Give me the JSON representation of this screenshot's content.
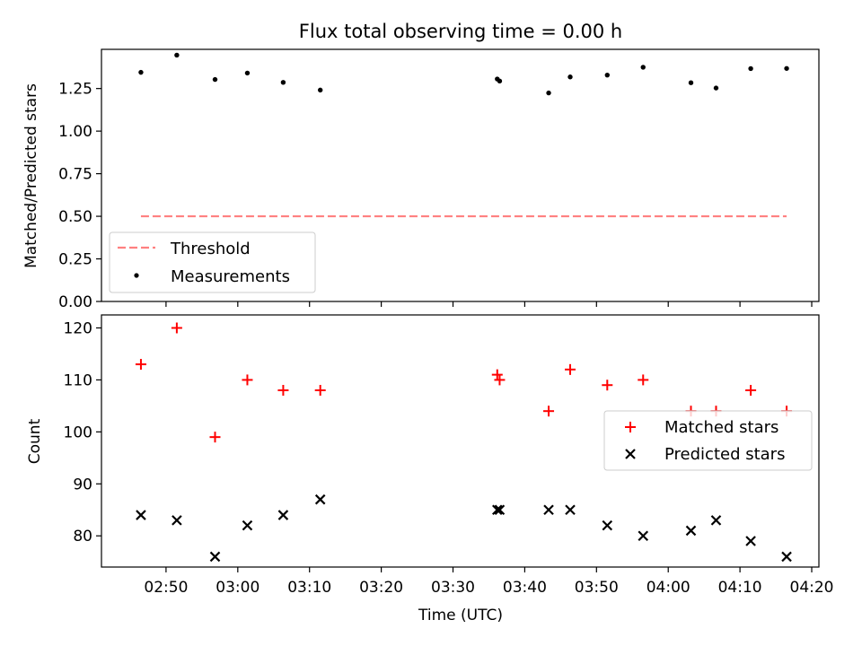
{
  "chart_data": [
    {
      "type": "scatter",
      "title": "Flux total observing time = 0.00 h",
      "xlabel": "",
      "ylabel": "Matched/Predicted stars",
      "xlim": [
        "02:41",
        "04:21"
      ],
      "ylim": [
        0,
        1.48
      ],
      "yticks": [
        0.0,
        0.25,
        0.5,
        0.75,
        1.0,
        1.25
      ],
      "ytick_labels": [
        "0.00",
        "0.25",
        "0.50",
        "0.75",
        "1.00",
        "1.25"
      ],
      "grid": false,
      "legend": "lower-left",
      "series": [
        {
          "name": "Threshold",
          "kind": "dashed-line",
          "color": "#ff8080",
          "x": [
            "02:46:30",
            "04:16:30"
          ],
          "y": [
            0.5,
            0.5
          ]
        },
        {
          "name": "Measurements",
          "kind": "dots",
          "color": "#000000",
          "x": [
            "02:46:30",
            "02:51:30",
            "02:56:50",
            "03:01:20",
            "03:06:20",
            "03:11:30",
            "03:36:10",
            "03:36:30",
            "03:43:20",
            "03:46:20",
            "03:51:30",
            "03:56:30",
            "04:03:10",
            "04:06:40",
            "04:11:30",
            "04:16:30"
          ],
          "y": [
            1.345,
            1.446,
            1.303,
            1.341,
            1.286,
            1.241,
            1.306,
            1.294,
            1.224,
            1.318,
            1.329,
            1.375,
            1.284,
            1.253,
            1.367,
            1.368
          ]
        }
      ]
    },
    {
      "type": "scatter",
      "title": "",
      "xlabel": "Time (UTC)",
      "ylabel": "Count",
      "xlim": [
        "02:41",
        "04:21"
      ],
      "xticks": [
        "02:50",
        "03:00",
        "03:10",
        "03:20",
        "03:30",
        "03:40",
        "03:50",
        "04:00",
        "04:10",
        "04:20"
      ],
      "ylim": [
        74,
        122.5
      ],
      "yticks": [
        80,
        90,
        100,
        110,
        120
      ],
      "grid": false,
      "legend": "right",
      "series": [
        {
          "name": "Matched stars",
          "marker": "plus",
          "color": "#ff0000",
          "x": [
            "02:46:30",
            "02:51:30",
            "02:56:50",
            "03:01:20",
            "03:06:20",
            "03:11:30",
            "03:36:10",
            "03:36:30",
            "03:43:20",
            "03:46:20",
            "03:51:30",
            "03:56:30",
            "04:03:10",
            "04:06:40",
            "04:11:30",
            "04:16:30"
          ],
          "y": [
            113,
            120,
            99,
            110,
            108,
            108,
            111,
            110,
            104,
            112,
            109,
            110,
            104,
            104,
            108,
            104
          ]
        },
        {
          "name": "Predicted stars",
          "marker": "x",
          "color": "#000000",
          "x": [
            "02:46:30",
            "02:51:30",
            "02:56:50",
            "03:01:20",
            "03:06:20",
            "03:11:30",
            "03:36:10",
            "03:36:30",
            "03:43:20",
            "03:46:20",
            "03:51:30",
            "03:56:30",
            "04:03:10",
            "04:06:40",
            "04:11:30",
            "04:16:30"
          ],
          "y": [
            84,
            83,
            76,
            82,
            84,
            87,
            85,
            85,
            85,
            85,
            82,
            80,
            81,
            83,
            79,
            76
          ]
        }
      ]
    }
  ]
}
